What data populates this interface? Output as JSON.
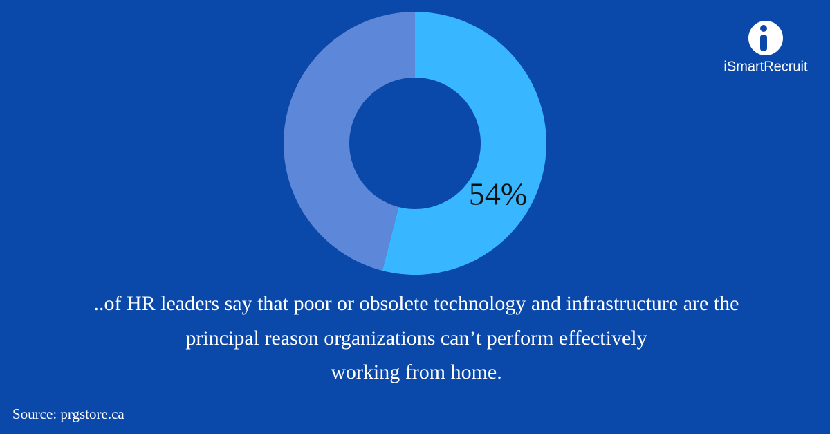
{
  "chart_data": {
    "type": "donut",
    "values": [
      54,
      46
    ],
    "value_labels": [
      "54%",
      null
    ],
    "colors": [
      "#38b6ff",
      "#5d87d8"
    ],
    "caption": [
      "..of HR leaders say that poor or obsolete technology and infrastructure are the",
      "principal reason organizations can’t perform effectively",
      "working from home."
    ],
    "source": "Source: prgstore.ca"
  },
  "logo": "iSmartRecruit"
}
